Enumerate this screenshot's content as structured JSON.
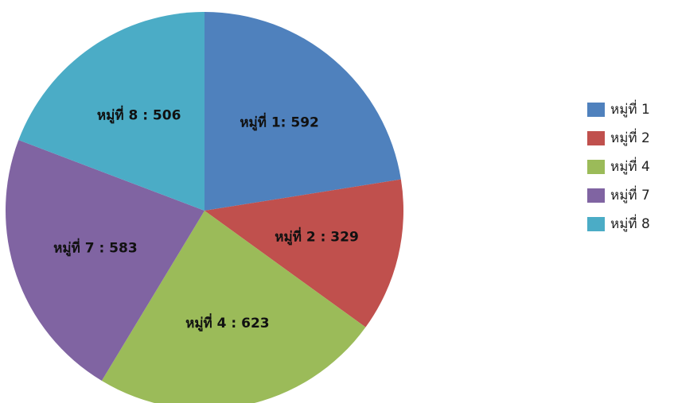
{
  "chart_data": {
    "type": "pie",
    "title": "",
    "slices": [
      {
        "name": "หมู่ที่ 1",
        "label": "หมู่ที่ 1: 592",
        "value": 592,
        "color": "#4F81BD"
      },
      {
        "name": "หมู่ที่ 2",
        "label": "หมู่ที่ 2 : 329",
        "value": 329,
        "color": "#C0504D"
      },
      {
        "name": "หมู่ที่ 4",
        "label": "หมู่ที่ 4 : 623",
        "value": 623,
        "color": "#9BBB59"
      },
      {
        "name": "หมู่ที่ 7",
        "label": "หมู่ที่ 7 : 583",
        "value": 583,
        "color": "#8064A2"
      },
      {
        "name": "หมู่ที่ 8",
        "label": "หมู่ที่ 8 : 506",
        "value": 506,
        "color": "#4BACC6"
      }
    ],
    "start": "12 o'clock",
    "direction": "clockwise",
    "legend": "right"
  }
}
